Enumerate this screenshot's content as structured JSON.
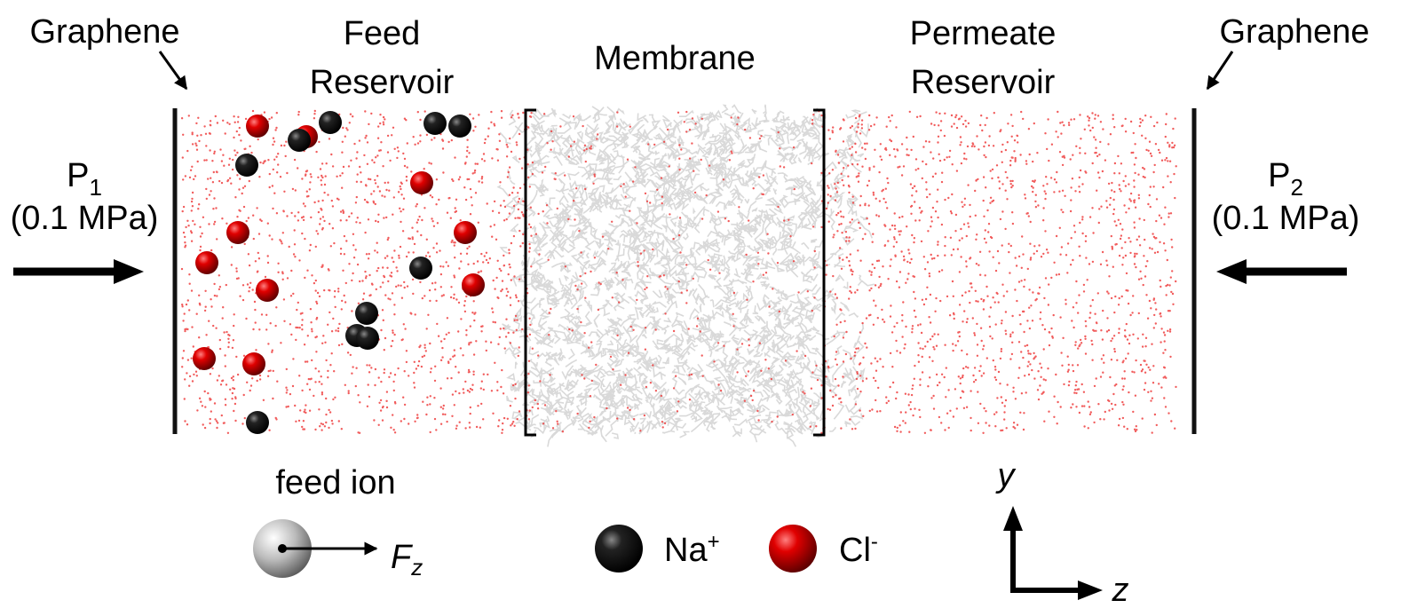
{
  "labels": {
    "graphene_left": "Graphene",
    "feed_reservoir": [
      "Feed",
      "Reservoir"
    ],
    "membrane": "Membrane",
    "permeate_reservoir": [
      "Permeate",
      "Reservoir"
    ],
    "graphene_right": "Graphene"
  },
  "pressures": [
    {
      "symbol": "P",
      "subscript": "1",
      "value": "(0.1 MPa)"
    },
    {
      "symbol": "P",
      "subscript": "2",
      "value": "(0.1 MPa)"
    }
  ],
  "legend": {
    "feed_ion": "feed ion",
    "force": {
      "symbol": "F",
      "subscript": "z"
    },
    "sodium": {
      "symbol": "Na",
      "superscript": "+"
    },
    "chloride": {
      "symbol": "Cl",
      "superscript": "-"
    }
  },
  "axes": {
    "y": "y",
    "z": "z"
  }
}
